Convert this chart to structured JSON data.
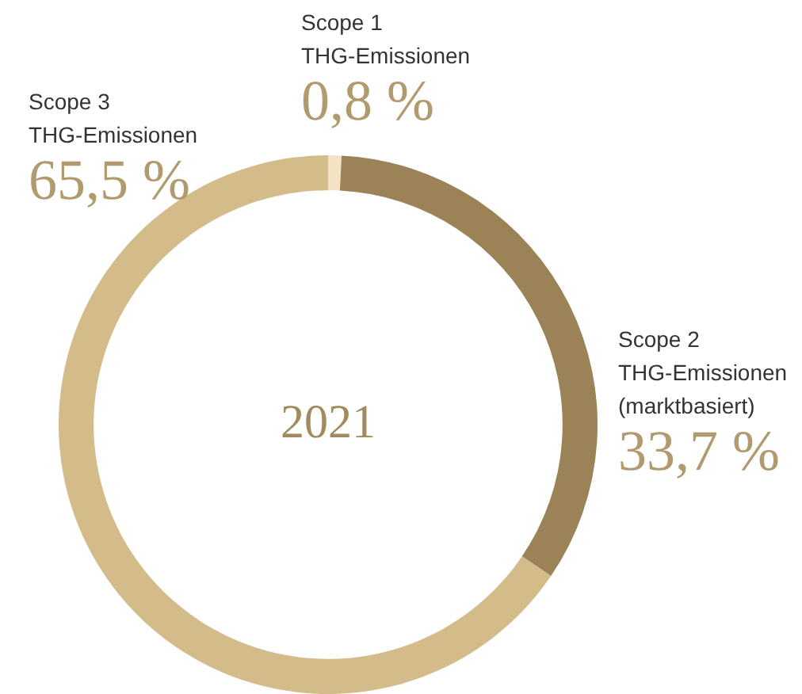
{
  "chart_data": {
    "type": "donut",
    "title": "2021",
    "categories": [
      "Scope 1\nTHG-Emissionen",
      "Scope 2\nTHG-Emissionen\n(marktbasiert)",
      "Scope 3\nTHG-Emissionen"
    ],
    "values": [
      0.8,
      33.7,
      65.5
    ],
    "value_labels": [
      "0,8 %",
      "33,7 %",
      "65,5 %"
    ],
    "colors": [
      "#f3e3c4",
      "#9b8357",
      "#d4bb8a"
    ],
    "legend": false
  }
}
